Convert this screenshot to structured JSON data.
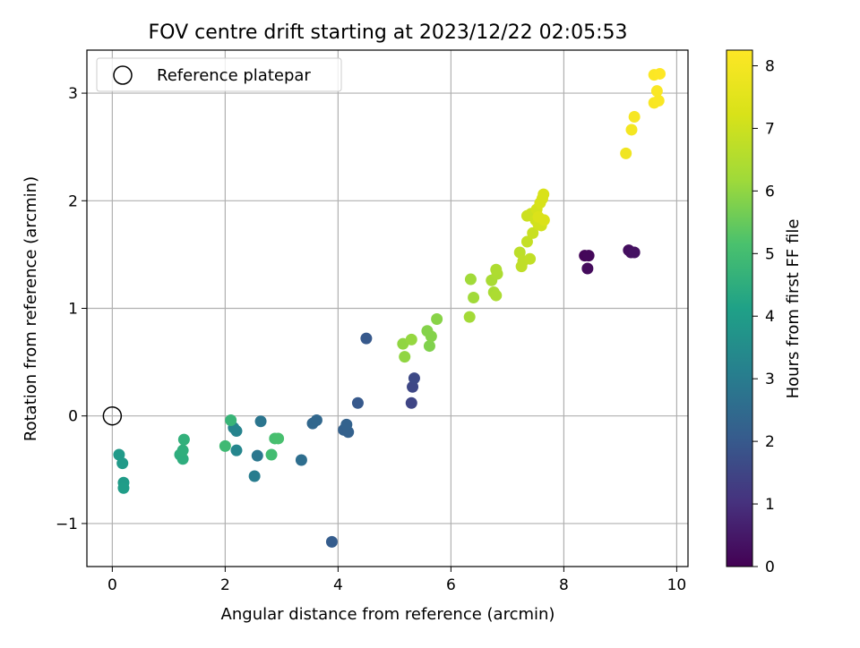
{
  "chart_data": {
    "type": "scatter",
    "title": "FOV centre drift starting at 2023/12/22 02:05:53",
    "xlabel": "Angular distance from reference (arcmin)",
    "ylabel": "Rotation from reference (arcmin)",
    "xlim": [
      -0.45,
      10.2
    ],
    "ylim": [
      -1.4,
      3.4
    ],
    "x_ticks": [
      {
        "v": 0,
        "label": "0"
      },
      {
        "v": 2,
        "label": "2"
      },
      {
        "v": 4,
        "label": "4"
      },
      {
        "v": 6,
        "label": "6"
      },
      {
        "v": 8,
        "label": "8"
      },
      {
        "v": 10,
        "label": "10"
      }
    ],
    "y_ticks": [
      {
        "v": -1,
        "label": "−1"
      },
      {
        "v": 0,
        "label": "0"
      },
      {
        "v": 1,
        "label": "1"
      },
      {
        "v": 2,
        "label": "2"
      },
      {
        "v": 3,
        "label": "3"
      }
    ],
    "grid": true,
    "legend": {
      "placement": "upper-left",
      "label": "Reference platepar"
    },
    "reference_point": {
      "x": 0,
      "y": 0,
      "marker": "hollow-circle",
      "color": "#000000"
    },
    "colorbar": {
      "label": "Hours from first FF file",
      "colormap": "viridis",
      "range": [
        0,
        8.25
      ],
      "ticks": [
        {
          "v": 0,
          "label": "0"
        },
        {
          "v": 1,
          "label": "1"
        },
        {
          "v": 2,
          "label": "2"
        },
        {
          "v": 3,
          "label": "3"
        },
        {
          "v": 4,
          "label": "4"
        },
        {
          "v": 5,
          "label": "5"
        },
        {
          "v": 6,
          "label": "6"
        },
        {
          "v": 7,
          "label": "7"
        },
        {
          "v": 8,
          "label": "8"
        }
      ]
    },
    "points": [
      {
        "x": 8.37,
        "y": 1.49,
        "c": 0.1
      },
      {
        "x": 8.44,
        "y": 1.49,
        "c": 0.15
      },
      {
        "x": 8.42,
        "y": 1.37,
        "c": 0.2
      },
      {
        "x": 9.15,
        "y": 1.54,
        "c": 0.25
      },
      {
        "x": 9.19,
        "y": 1.52,
        "c": 0.3
      },
      {
        "x": 9.25,
        "y": 1.52,
        "c": 0.35
      },
      {
        "x": 5.3,
        "y": 0.12,
        "c": 1.5
      },
      {
        "x": 5.32,
        "y": 0.27,
        "c": 1.55
      },
      {
        "x": 5.35,
        "y": 0.35,
        "c": 1.6
      },
      {
        "x": 4.35,
        "y": 0.12,
        "c": 2.0
      },
      {
        "x": 4.5,
        "y": 0.72,
        "c": 2.0
      },
      {
        "x": 3.89,
        "y": -1.17,
        "c": 2.1
      },
      {
        "x": 4.1,
        "y": -0.13,
        "c": 2.2
      },
      {
        "x": 4.18,
        "y": -0.15,
        "c": 2.2
      },
      {
        "x": 4.15,
        "y": -0.08,
        "c": 2.25
      },
      {
        "x": 3.55,
        "y": -0.07,
        "c": 2.4
      },
      {
        "x": 3.62,
        "y": -0.04,
        "c": 2.4
      },
      {
        "x": 3.35,
        "y": -0.41,
        "c": 2.6
      },
      {
        "x": 2.63,
        "y": -0.05,
        "c": 2.8
      },
      {
        "x": 2.57,
        "y": -0.37,
        "c": 2.85
      },
      {
        "x": 2.52,
        "y": -0.56,
        "c": 3.0
      },
      {
        "x": 2.2,
        "y": -0.14,
        "c": 3.2
      },
      {
        "x": 2.15,
        "y": -0.11,
        "c": 3.25
      },
      {
        "x": 2.2,
        "y": -0.32,
        "c": 3.3
      },
      {
        "x": 0.12,
        "y": -0.36,
        "c": 3.9
      },
      {
        "x": 0.18,
        "y": -0.44,
        "c": 3.9
      },
      {
        "x": 0.2,
        "y": -0.62,
        "c": 3.95
      },
      {
        "x": 0.2,
        "y": -0.67,
        "c": 4.0
      },
      {
        "x": 1.2,
        "y": -0.36,
        "c": 4.5
      },
      {
        "x": 1.25,
        "y": -0.4,
        "c": 4.5
      },
      {
        "x": 1.25,
        "y": -0.32,
        "c": 4.55
      },
      {
        "x": 1.27,
        "y": -0.22,
        "c": 4.6
      },
      {
        "x": 2.1,
        "y": -0.04,
        "c": 4.75
      },
      {
        "x": 2.0,
        "y": -0.28,
        "c": 4.9
      },
      {
        "x": 2.82,
        "y": -0.36,
        "c": 5.0
      },
      {
        "x": 2.88,
        "y": -0.21,
        "c": 5.05
      },
      {
        "x": 2.94,
        "y": -0.21,
        "c": 5.1
      },
      {
        "x": 5.62,
        "y": 0.65,
        "c": 5.8
      },
      {
        "x": 5.65,
        "y": 0.74,
        "c": 5.85
      },
      {
        "x": 5.58,
        "y": 0.79,
        "c": 5.85
      },
      {
        "x": 5.75,
        "y": 0.9,
        "c": 5.9
      },
      {
        "x": 5.15,
        "y": 0.67,
        "c": 6.0
      },
      {
        "x": 5.18,
        "y": 0.55,
        "c": 6.0
      },
      {
        "x": 5.3,
        "y": 0.71,
        "c": 6.05
      },
      {
        "x": 6.35,
        "y": 1.27,
        "c": 6.2
      },
      {
        "x": 6.4,
        "y": 1.1,
        "c": 6.2
      },
      {
        "x": 6.33,
        "y": 0.92,
        "c": 6.25
      },
      {
        "x": 6.72,
        "y": 1.26,
        "c": 6.35
      },
      {
        "x": 6.76,
        "y": 1.15,
        "c": 6.35
      },
      {
        "x": 6.8,
        "y": 1.12,
        "c": 6.4
      },
      {
        "x": 6.82,
        "y": 1.32,
        "c": 6.4
      },
      {
        "x": 6.8,
        "y": 1.36,
        "c": 6.45
      },
      {
        "x": 7.22,
        "y": 1.52,
        "c": 6.7
      },
      {
        "x": 7.25,
        "y": 1.39,
        "c": 6.75
      },
      {
        "x": 7.28,
        "y": 1.44,
        "c": 6.75
      },
      {
        "x": 7.4,
        "y": 1.46,
        "c": 6.8
      },
      {
        "x": 7.35,
        "y": 1.62,
        "c": 6.85
      },
      {
        "x": 7.45,
        "y": 1.7,
        "c": 6.95
      },
      {
        "x": 7.35,
        "y": 1.86,
        "c": 7.0
      },
      {
        "x": 7.42,
        "y": 1.88,
        "c": 7.0
      },
      {
        "x": 7.5,
        "y": 1.82,
        "c": 7.05
      },
      {
        "x": 7.55,
        "y": 1.78,
        "c": 7.1
      },
      {
        "x": 7.6,
        "y": 1.77,
        "c": 7.1
      },
      {
        "x": 7.52,
        "y": 1.92,
        "c": 7.15
      },
      {
        "x": 7.58,
        "y": 1.98,
        "c": 7.2
      },
      {
        "x": 7.62,
        "y": 2.02,
        "c": 7.2
      },
      {
        "x": 7.64,
        "y": 2.06,
        "c": 7.25
      },
      {
        "x": 7.65,
        "y": 1.82,
        "c": 7.3
      },
      {
        "x": 7.55,
        "y": 1.85,
        "c": 7.3
      },
      {
        "x": 9.1,
        "y": 2.44,
        "c": 7.9
      },
      {
        "x": 9.2,
        "y": 2.66,
        "c": 8.0
      },
      {
        "x": 9.25,
        "y": 2.78,
        "c": 8.05
      },
      {
        "x": 9.6,
        "y": 2.91,
        "c": 8.1
      },
      {
        "x": 9.68,
        "y": 2.93,
        "c": 8.15
      },
      {
        "x": 9.65,
        "y": 3.02,
        "c": 8.15
      },
      {
        "x": 9.6,
        "y": 3.17,
        "c": 8.2
      },
      {
        "x": 9.7,
        "y": 3.18,
        "c": 8.25
      }
    ]
  }
}
